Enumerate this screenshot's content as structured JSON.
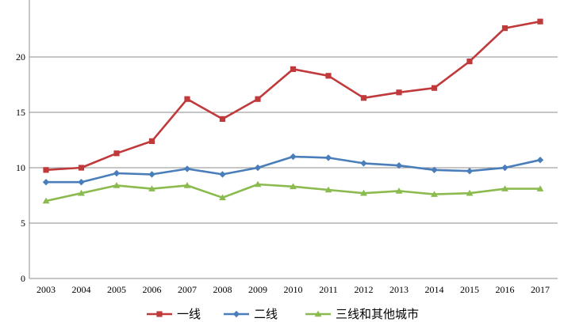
{
  "chart_data": {
    "type": "line",
    "title": "",
    "xlabel": "",
    "ylabel": "",
    "categories": [
      "2003",
      "2004",
      "2005",
      "2006",
      "2007",
      "2008",
      "2009",
      "2010",
      "2011",
      "2012",
      "2013",
      "2014",
      "2015",
      "2016",
      "2017"
    ],
    "ylim": [
      0,
      25
    ],
    "yticks": [
      0,
      5,
      10,
      15,
      20
    ],
    "grid": true,
    "legend_position": "bottom",
    "series": [
      {
        "name": "一线",
        "color": "#c0393b",
        "marker": "square",
        "values": [
          9.8,
          10.0,
          11.3,
          12.4,
          16.2,
          14.4,
          16.2,
          18.9,
          18.3,
          16.3,
          16.8,
          17.2,
          19.6,
          22.6,
          23.2
        ]
      },
      {
        "name": "二线",
        "color": "#4a7ebb",
        "marker": "diamond",
        "values": [
          8.7,
          8.7,
          9.5,
          9.4,
          9.9,
          9.4,
          10.0,
          11.0,
          10.9,
          10.4,
          10.2,
          9.8,
          9.7,
          10.0,
          10.7
        ]
      },
      {
        "name": "三线和其他城市",
        "color": "#8bbb4e",
        "marker": "triangle",
        "values": [
          7.0,
          7.7,
          8.4,
          8.1,
          8.4,
          7.3,
          8.5,
          8.3,
          8.0,
          7.7,
          7.9,
          7.6,
          7.7,
          8.1,
          8.1
        ]
      }
    ]
  }
}
